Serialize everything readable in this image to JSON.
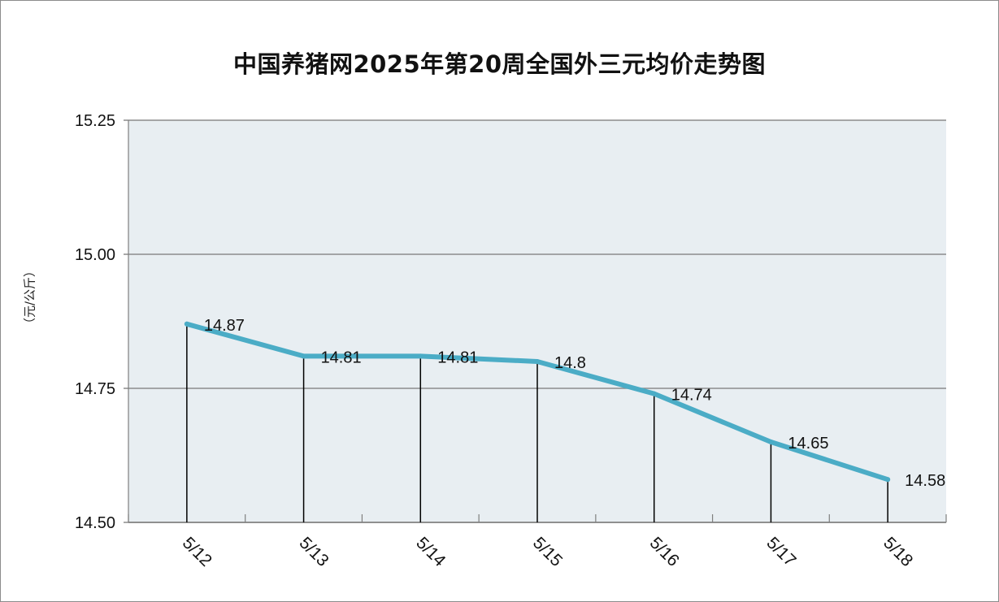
{
  "chart_data": {
    "type": "line",
    "title": "中国养猪网2025年第20周全国外三元均价走势图",
    "xlabel": "",
    "ylabel": "（元/公斤）",
    "categories": [
      "5/12",
      "5/13",
      "5/14",
      "5/15",
      "5/16",
      "5/17",
      "5/18"
    ],
    "values": [
      14.87,
      14.81,
      14.81,
      14.8,
      14.74,
      14.65,
      14.58
    ],
    "data_labels": [
      "14.87",
      "14.81",
      "14.81",
      "14.8",
      "14.74",
      "14.65",
      "14.58"
    ],
    "ylim": [
      14.5,
      15.25
    ],
    "yticks": [
      14.5,
      14.75,
      15.0,
      15.25
    ],
    "ytick_labels": [
      "14.50",
      "14.75",
      "15.00",
      "15.25"
    ],
    "grid": true,
    "drop_lines": true,
    "colors": {
      "line": "#4bacc6",
      "plot_background": "#e8eef2",
      "gridline": "#8c8c8c",
      "drop_line": "#000000"
    }
  }
}
